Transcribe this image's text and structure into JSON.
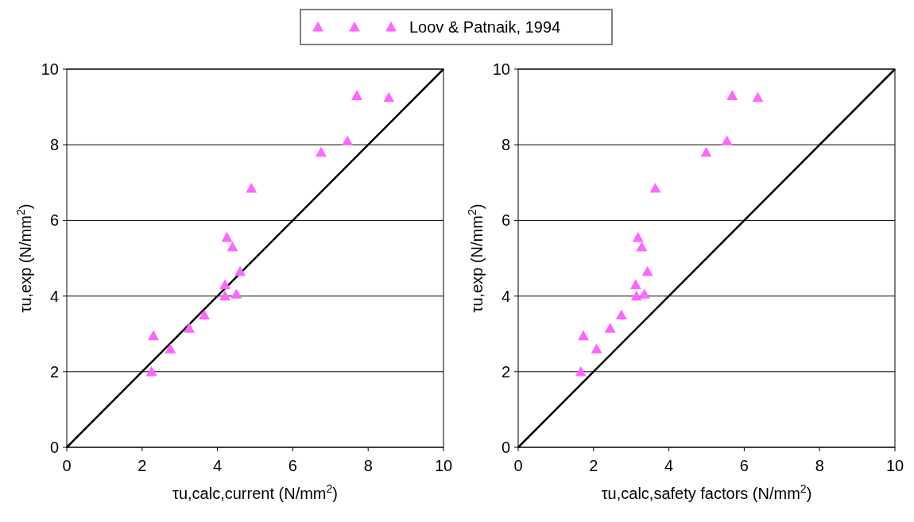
{
  "chart_data": [
    {
      "type": "scatter",
      "xlabel": "τu,calc,current (N/mm$^{2}$)",
      "ylabel": "τu,exp (N/mm$^{2}$)",
      "xlim": [
        0,
        10
      ],
      "ylim": [
        0,
        10
      ],
      "xticks": [
        0,
        2,
        4,
        6,
        8,
        10
      ],
      "yticks": [
        0,
        2,
        4,
        6,
        8,
        10
      ],
      "grid": "y",
      "legend": "top",
      "series": [
        {
          "name": "Loov & Patnaik, 1994",
          "marker": "triangle",
          "color": "#ff66ff",
          "x": [
            2.25,
            2.3,
            2.75,
            3.25,
            3.65,
            4.2,
            4.2,
            4.5,
            4.6,
            4.4,
            4.25,
            4.9,
            6.75,
            7.45,
            7.7,
            8.55
          ],
          "values": [
            2.0,
            2.95,
            2.6,
            3.15,
            3.5,
            4.0,
            4.3,
            4.05,
            4.65,
            5.3,
            5.55,
            6.85,
            7.8,
            8.1,
            9.3,
            9.25
          ]
        },
        {
          "type": "line",
          "color": "#000000",
          "x": [
            0,
            10
          ],
          "values": [
            0,
            10
          ]
        }
      ]
    },
    {
      "type": "scatter",
      "xlabel": "τu,calc,safety factors (N/mm$^{2}$)",
      "ylabel": "τu,exp (N/mm$^{2}$)",
      "xlim": [
        0,
        10
      ],
      "ylim": [
        0,
        10
      ],
      "xticks": [
        0,
        2,
        4,
        6,
        8,
        10
      ],
      "yticks": [
        0,
        2,
        4,
        6,
        8,
        10
      ],
      "grid": "y",
      "series": [
        {
          "marker": "triangle",
          "color": "#ff66ff",
          "x": [
            1.66,
            1.73,
            2.08,
            2.44,
            2.74,
            3.14,
            3.12,
            3.35,
            3.43,
            3.28,
            3.18,
            3.64,
            4.99,
            5.54,
            5.68,
            6.36
          ],
          "values": [
            2.0,
            2.95,
            2.6,
            3.15,
            3.5,
            4.0,
            4.3,
            4.05,
            4.65,
            5.3,
            5.55,
            6.85,
            7.8,
            8.1,
            9.3,
            9.25
          ]
        },
        {
          "type": "line",
          "color": "#000000",
          "x": [
            0,
            10
          ],
          "values": [
            0,
            10
          ]
        }
      ]
    }
  ]
}
